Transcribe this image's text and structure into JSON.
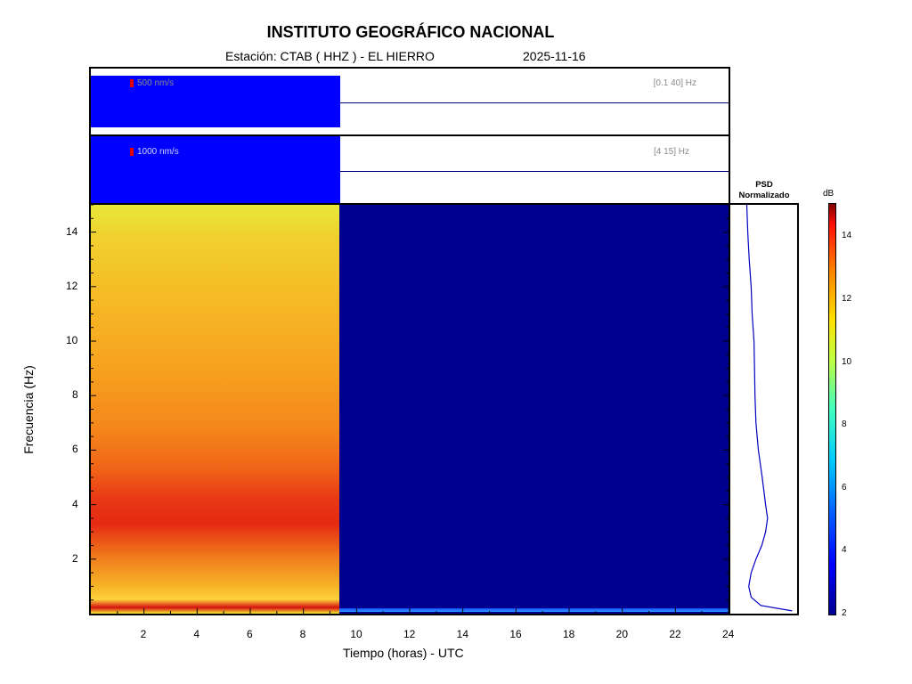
{
  "header": {
    "title": "INSTITUTO GEOGRÁFICO NACIONAL",
    "station": "Estación:  CTAB ( HHZ ) - EL HIERRO",
    "date": "2025-11-16"
  },
  "seismograms": [
    {
      "scale": "500 nm/s",
      "band": "[0.1 40] Hz"
    },
    {
      "scale": "1000 nm/s",
      "band": "[4 15] Hz"
    }
  ],
  "psd_panel": {
    "title_line1": "PSD",
    "title_line2": "Normalizado"
  },
  "colorbar": {
    "unit": "dB",
    "ticks": [
      "2",
      "4",
      "6",
      "8",
      "10",
      "12",
      "14"
    ],
    "range": [
      2,
      15
    ],
    "colormap": "jet"
  },
  "chart_data": {
    "type": "heatmap",
    "title": "INSTITUTO GEOGRÁFICO NACIONAL",
    "xlabel": "Tiempo (horas) - UTC",
    "ylabel": "Frecuencia  (Hz)",
    "xlim": [
      0,
      24
    ],
    "ylim": [
      0,
      15
    ],
    "x_ticks": [
      "2",
      "4",
      "6",
      "8",
      "10",
      "12",
      "14",
      "16",
      "18",
      "20",
      "22",
      "24"
    ],
    "y_ticks": [
      "2",
      "4",
      "6",
      "8",
      "10",
      "12",
      "14"
    ],
    "data_end_hour": 9.35,
    "z_range_db": [
      2,
      15
    ],
    "psd_profile": {
      "freq_hz": [
        0.1,
        0.3,
        0.6,
        1.0,
        1.5,
        2.0,
        2.5,
        3.0,
        3.5,
        4.0,
        5.0,
        6.0,
        7.0,
        8.0,
        9.0,
        10.0,
        11.0,
        12.0,
        13.0,
        14.0,
        15.0
      ],
      "normalized": [
        0.95,
        0.3,
        0.1,
        0.05,
        0.1,
        0.2,
        0.32,
        0.4,
        0.44,
        0.4,
        0.33,
        0.25,
        0.2,
        0.18,
        0.17,
        0.16,
        0.12,
        0.1,
        0.06,
        0.03,
        0.01
      ]
    }
  }
}
